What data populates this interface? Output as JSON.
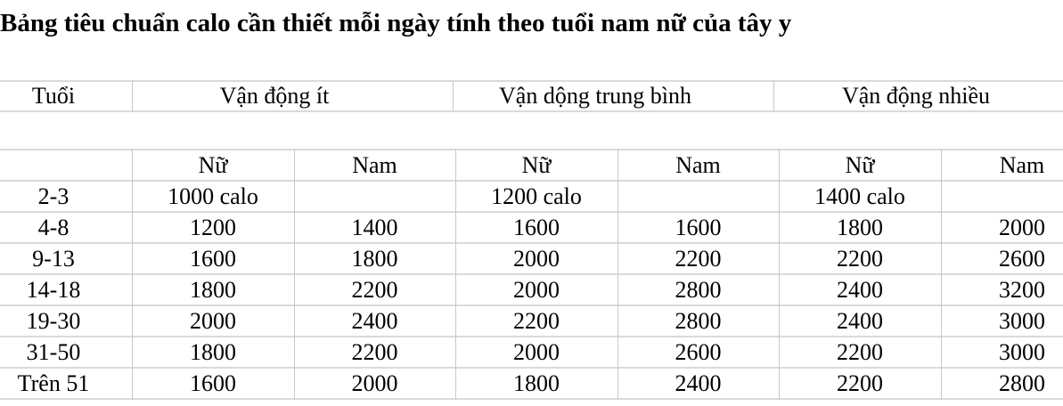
{
  "title": "Bảng tiêu chuẩn calo cần thiết mỗi ngày tính theo tuổi nam nữ của tây y",
  "group_header": {
    "age": "Tuổi",
    "groups": [
      "Vận động ít",
      "Vận dộng trung bình",
      "Vận động nhiều"
    ]
  },
  "sub_header": [
    "",
    "Nữ",
    "Nam",
    "Nữ",
    "Nam",
    "Nữ",
    "Nam"
  ],
  "rows": [
    [
      "2-3",
      "1000 calo",
      "",
      "1200 calo",
      "",
      "1400 calo",
      ""
    ],
    [
      "4-8",
      "1200",
      "1400",
      "1600",
      "1600",
      "1800",
      "2000"
    ],
    [
      "9-13",
      "1600",
      "1800",
      "2000",
      "2200",
      "2200",
      "2600"
    ],
    [
      "14-18",
      "1800",
      "2200",
      "2000",
      "2800",
      "2400",
      "3200"
    ],
    [
      "19-30",
      "2000",
      "2400",
      "2200",
      "2800",
      "2400",
      "3000"
    ],
    [
      "31-50",
      "1800",
      "2200",
      "2000",
      "2600",
      "2200",
      "3000"
    ],
    [
      "Trên 51",
      "1600",
      "2000",
      "1800",
      "2400",
      "2200",
      "2800"
    ]
  ]
}
